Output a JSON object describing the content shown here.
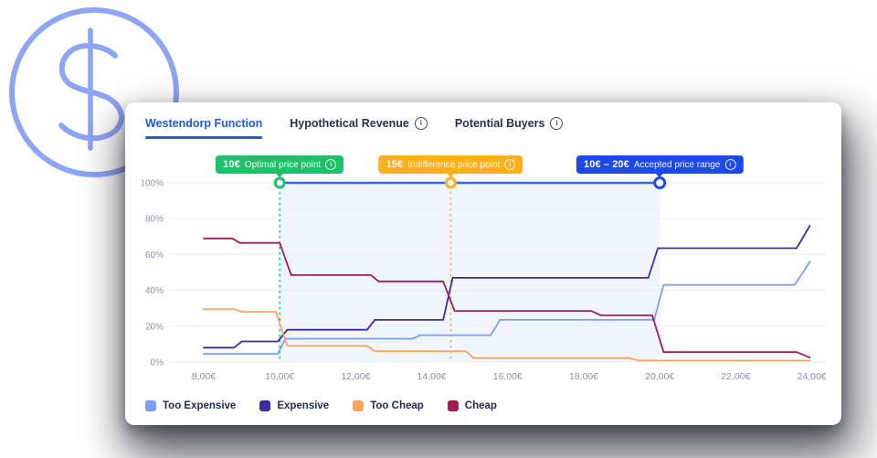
{
  "theme": {
    "accent": "#2357e9",
    "tab_text": "#25334d",
    "axis_text": "#8a94a8",
    "grid_color": "#eceef2",
    "legend_text": "#22304a",
    "decoration_color": "#8ca5f4",
    "card_background": "#ffffff"
  },
  "tabs": [
    {
      "label": "Westendorp Function",
      "active": true,
      "info": false
    },
    {
      "label": "Hypothetical Revenue",
      "active": false,
      "info": true
    },
    {
      "label": "Potential Buyers",
      "active": false,
      "info": true
    }
  ],
  "annotations": {
    "optimal": {
      "value": "10€",
      "label": "Optimal price point",
      "price": 10,
      "color": "#1fc06c",
      "dash_color": "#2bcb77"
    },
    "indifference": {
      "value": "15€",
      "label": "Indifference price point",
      "price": 14.5,
      "color": "#ffaf1c",
      "dash_color": "#ffb335"
    },
    "accepted": {
      "value": "10€ – 20€",
      "label": "Accepted price range",
      "price_start": 10,
      "price_end": 20,
      "color": "#1c49e8",
      "line_color": "#3465ec",
      "fill_color": "rgba(59,130,246,0.07)"
    }
  },
  "chart_data": {
    "type": "line",
    "x_axis": {
      "labels": [
        "8,00€",
        "10,00€",
        "12,00€",
        "14,00€",
        "16,00€",
        "18,00€",
        "20,00€",
        "22,00€",
        "24,00€"
      ],
      "values": [
        8,
        10,
        12,
        14,
        16,
        18,
        20,
        22,
        24
      ],
      "unit": "EUR",
      "range": [
        7.1,
        24.6
      ]
    },
    "y_axis": {
      "labels": [
        "0%",
        "20%",
        "40%",
        "60%",
        "80%",
        "100%"
      ],
      "values": [
        0,
        20,
        40,
        60,
        80,
        100
      ],
      "range": [
        0,
        100
      ]
    },
    "grid": "horizontal",
    "legend_position": "bottom-left",
    "series": [
      {
        "name": "Too Expensive",
        "color": "#7e9df6",
        "points": [
          [
            8,
            4.5
          ],
          [
            9.95,
            4.5
          ],
          [
            10.15,
            13
          ],
          [
            13.5,
            13
          ],
          [
            13.7,
            15
          ],
          [
            15.55,
            15
          ],
          [
            15.8,
            23.5
          ],
          [
            19.85,
            23.5
          ],
          [
            20.1,
            43
          ],
          [
            23.55,
            43
          ],
          [
            23.95,
            56
          ]
        ]
      },
      {
        "name": "Expensive",
        "color": "#3e2ca3",
        "points": [
          [
            8,
            8
          ],
          [
            8.8,
            8
          ],
          [
            9.0,
            11.5
          ],
          [
            9.95,
            11.5
          ],
          [
            10.2,
            18
          ],
          [
            12.3,
            18
          ],
          [
            12.5,
            23.5
          ],
          [
            14.3,
            23.5
          ],
          [
            14.55,
            47
          ],
          [
            19.7,
            47
          ],
          [
            19.95,
            63.5
          ],
          [
            23.6,
            63.5
          ],
          [
            23.95,
            76
          ]
        ]
      },
      {
        "name": "Too Cheap",
        "color": "#f8a55f",
        "points": [
          [
            8,
            29.5
          ],
          [
            8.8,
            29.5
          ],
          [
            9.0,
            28
          ],
          [
            9.9,
            28
          ],
          [
            10.2,
            9
          ],
          [
            12.3,
            9
          ],
          [
            12.5,
            6
          ],
          [
            14.9,
            6
          ],
          [
            15.1,
            2.2
          ],
          [
            19.2,
            2.2
          ],
          [
            19.45,
            0.8
          ],
          [
            23.95,
            0.8
          ]
        ]
      },
      {
        "name": "Cheap",
        "color": "#a11d55",
        "points": [
          [
            8,
            69
          ],
          [
            8.75,
            69
          ],
          [
            8.95,
            66.5
          ],
          [
            10.0,
            66.5
          ],
          [
            10.3,
            48.5
          ],
          [
            12.4,
            48.5
          ],
          [
            12.6,
            45
          ],
          [
            14.3,
            45
          ],
          [
            14.6,
            28.5
          ],
          [
            18.2,
            28.5
          ],
          [
            18.45,
            26
          ],
          [
            19.8,
            26
          ],
          [
            20.1,
            5.5
          ],
          [
            23.6,
            5.5
          ],
          [
            23.95,
            2.5
          ]
        ]
      }
    ]
  }
}
